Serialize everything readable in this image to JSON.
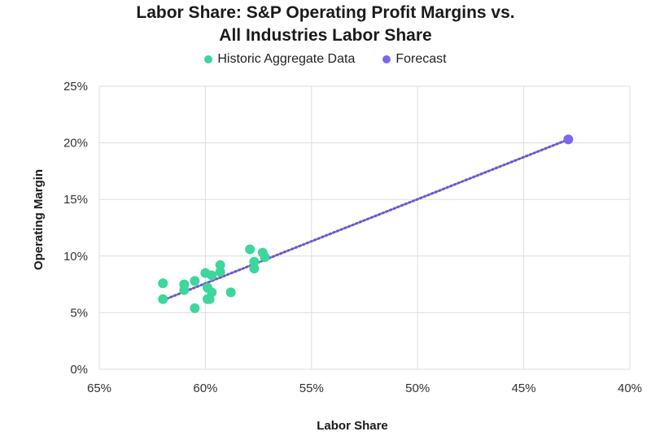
{
  "chart_data": {
    "type": "scatter",
    "title_line1": "Labor Share: S&P Operating Profit Margins vs.",
    "title_line2": "All Industries Labor Share",
    "xlabel": "Labor Share",
    "ylabel": "Operating Margin",
    "xlim": [
      65,
      40
    ],
    "ylim": [
      0,
      25
    ],
    "x_ticks": [
      "65%",
      "60%",
      "55%",
      "50%",
      "45%",
      "40%"
    ],
    "y_ticks": [
      "0%",
      "5%",
      "10%",
      "15%",
      "20%",
      "25%"
    ],
    "x_tick_values": [
      65,
      60,
      55,
      50,
      45,
      40
    ],
    "y_tick_values": [
      0,
      5,
      10,
      15,
      20,
      25
    ],
    "grid": true,
    "legend_position": "top-center",
    "series": [
      {
        "name": "Historic Aggregate Data",
        "color": "#3dd69c",
        "points": [
          {
            "x": 62.0,
            "y": 7.6
          },
          {
            "x": 62.0,
            "y": 6.2
          },
          {
            "x": 61.0,
            "y": 7.5
          },
          {
            "x": 61.0,
            "y": 7.0
          },
          {
            "x": 60.5,
            "y": 7.8
          },
          {
            "x": 60.5,
            "y": 5.4
          },
          {
            "x": 60.0,
            "y": 8.5
          },
          {
            "x": 59.9,
            "y": 7.2
          },
          {
            "x": 59.9,
            "y": 6.2
          },
          {
            "x": 59.8,
            "y": 6.2
          },
          {
            "x": 59.7,
            "y": 6.8
          },
          {
            "x": 59.7,
            "y": 8.3
          },
          {
            "x": 59.3,
            "y": 8.6
          },
          {
            "x": 59.3,
            "y": 9.2
          },
          {
            "x": 58.8,
            "y": 6.8
          },
          {
            "x": 57.9,
            "y": 10.6
          },
          {
            "x": 57.7,
            "y": 9.5
          },
          {
            "x": 57.7,
            "y": 8.9
          },
          {
            "x": 57.3,
            "y": 10.3
          },
          {
            "x": 57.2,
            "y": 9.9
          }
        ]
      },
      {
        "name": "Forecast",
        "color": "#7b68ee",
        "points": [
          {
            "x": 42.9,
            "y": 20.3
          }
        ]
      }
    ],
    "trendline": {
      "color": "#6a5acd",
      "from": {
        "x": 62.0,
        "y": 6.1
      },
      "to": {
        "x": 42.9,
        "y": 20.3
      }
    }
  }
}
